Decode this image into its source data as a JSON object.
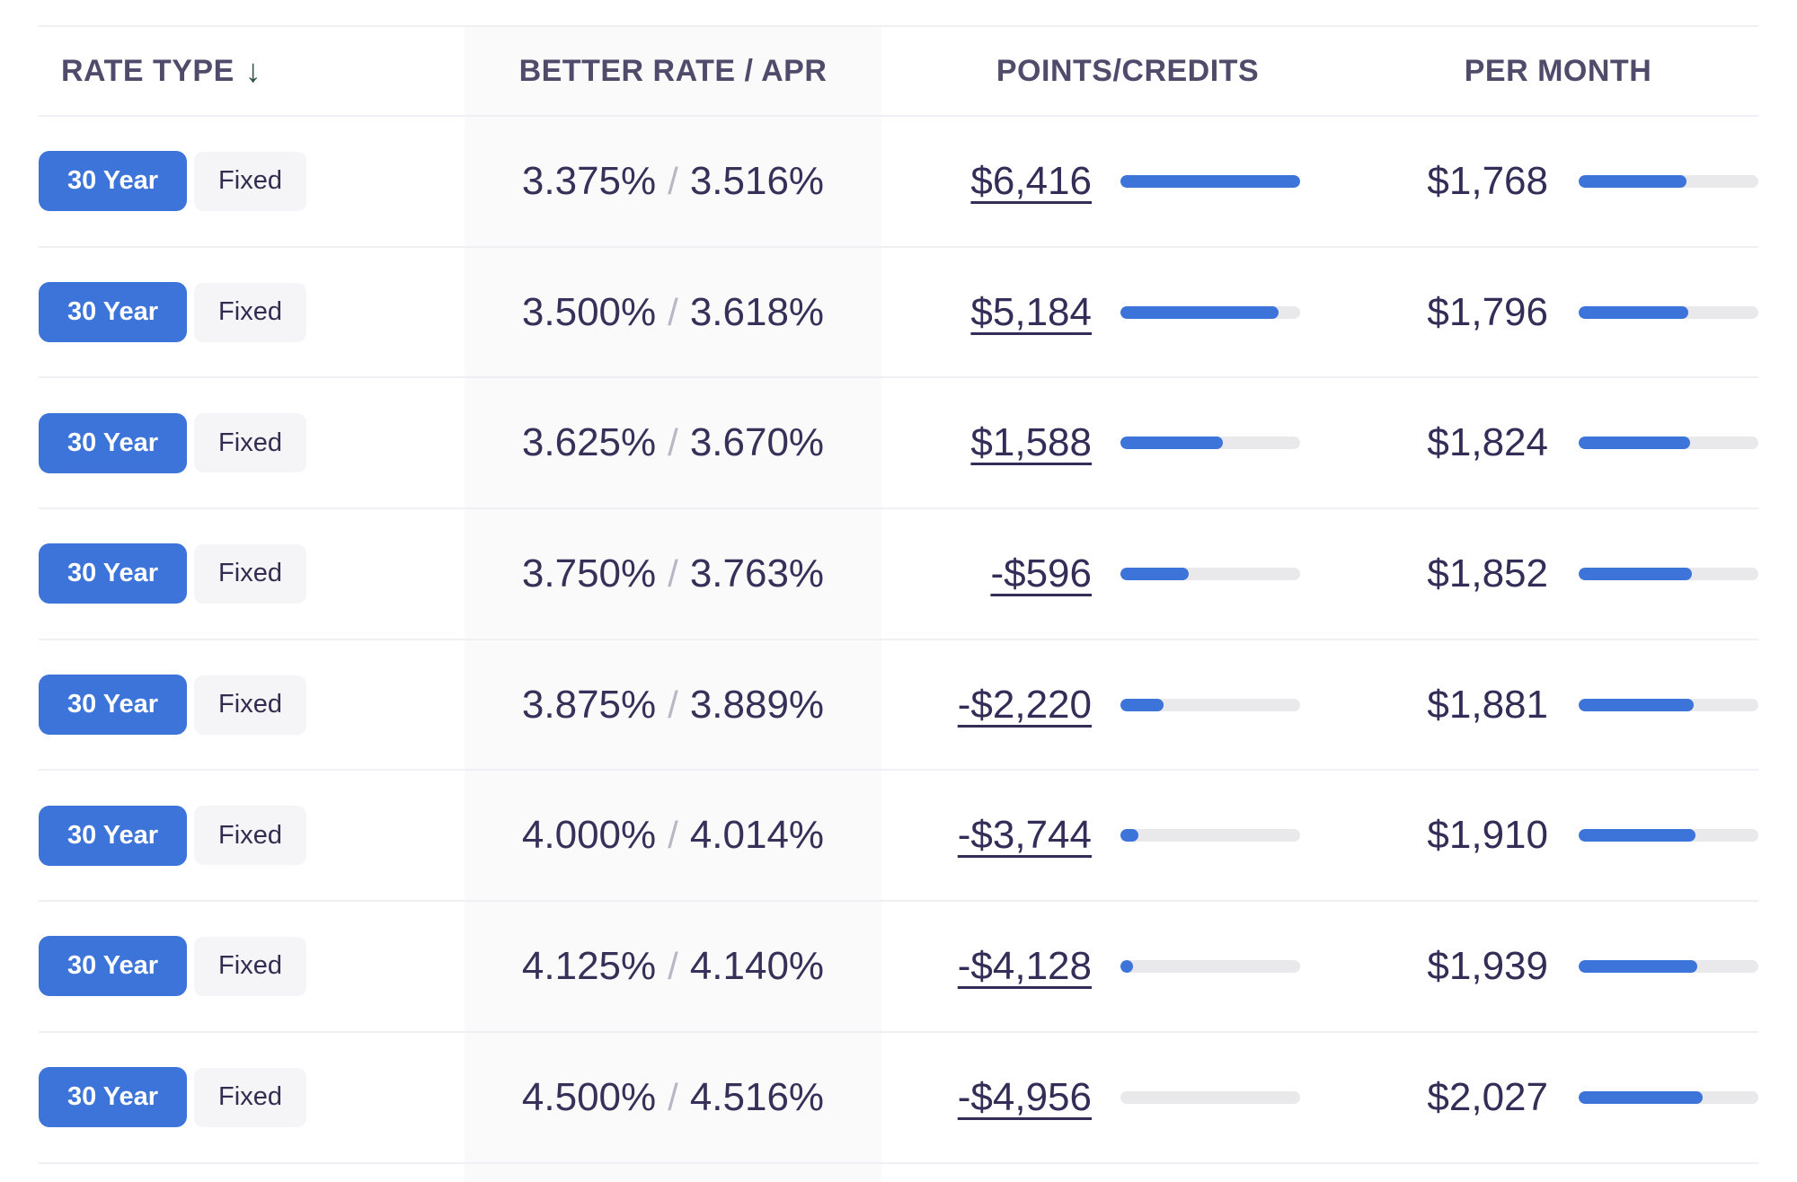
{
  "table": {
    "headers": {
      "rate_type": {
        "label": "RATE TYPE",
        "sort_icon": "↓"
      },
      "better_rate_apr": "BETTER RATE / APR",
      "points_credits": "POINTS/CREDITS",
      "per_month": "PER MONTH"
    },
    "rate_separator": "/",
    "rows": [
      {
        "term": "30 Year",
        "type": "Fixed",
        "rate": "3.375%",
        "apr": "3.516%",
        "points": "$6,416",
        "points_fill_pct": 100,
        "per_month": "$1,768",
        "per_month_fill_pct": 60
      },
      {
        "term": "30 Year",
        "type": "Fixed",
        "rate": "3.500%",
        "apr": "3.618%",
        "points": "$5,184",
        "points_fill_pct": 88,
        "per_month": "$1,796",
        "per_month_fill_pct": 61
      },
      {
        "term": "30 Year",
        "type": "Fixed",
        "rate": "3.625%",
        "apr": "3.670%",
        "points": "$1,588",
        "points_fill_pct": 57,
        "per_month": "$1,824",
        "per_month_fill_pct": 62
      },
      {
        "term": "30 Year",
        "type": "Fixed",
        "rate": "3.750%",
        "apr": "3.763%",
        "points": "-$596",
        "points_fill_pct": 38,
        "per_month": "$1,852",
        "per_month_fill_pct": 63
      },
      {
        "term": "30 Year",
        "type": "Fixed",
        "rate": "3.875%",
        "apr": "3.889%",
        "points": "-$2,220",
        "points_fill_pct": 24,
        "per_month": "$1,881",
        "per_month_fill_pct": 64
      },
      {
        "term": "30 Year",
        "type": "Fixed",
        "rate": "4.000%",
        "apr": "4.014%",
        "points": "-$3,744",
        "points_fill_pct": 10,
        "per_month": "$1,910",
        "per_month_fill_pct": 65
      },
      {
        "term": "30 Year",
        "type": "Fixed",
        "rate": "4.125%",
        "apr": "4.140%",
        "points": "-$4,128",
        "points_fill_pct": 7,
        "per_month": "$1,939",
        "per_month_fill_pct": 66
      },
      {
        "term": "30 Year",
        "type": "Fixed",
        "rate": "4.500%",
        "apr": "4.516%",
        "points": "-$4,956",
        "points_fill_pct": 0,
        "per_month": "$2,027",
        "per_month_fill_pct": 69
      }
    ]
  },
  "colors": {
    "accent_blue": "#3d74da",
    "bar_track_gray": "#e9e9ec",
    "header_text": "#514b6b",
    "value_text": "#332d57",
    "sort_arrow_green": "#2c5243",
    "column_shade": "#fafafa",
    "divider": "#f0eff3",
    "chip_background": "#f5f5f7"
  }
}
